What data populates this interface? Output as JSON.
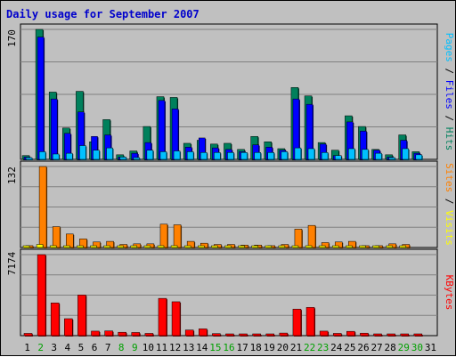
{
  "title": "Daily usage for September 2007",
  "colors": {
    "background": "#c0c0c0",
    "plot_background": "#c0c0c0",
    "grid": "#808080",
    "title": "#0000cc",
    "hits": "#00805c",
    "files": "#0000ff",
    "pages": "#00c0ff",
    "visits": "#ffff00",
    "sites": "#ff8000",
    "kbytes": "#ff0000",
    "weekend": "#00a000",
    "weekday": "#000000"
  },
  "side_labels": {
    "top": [
      {
        "text": "Pages",
        "color": "#00c0ff"
      },
      {
        "text": " / ",
        "color": "#000000"
      },
      {
        "text": "Files",
        "color": "#0000ff"
      },
      {
        "text": " / ",
        "color": "#000000"
      },
      {
        "text": "Hits",
        "color": "#00805c"
      }
    ],
    "middle": [
      {
        "text": "Sites",
        "color": "#ff8000"
      },
      {
        "text": " / ",
        "color": "#000000"
      },
      {
        "text": "Visits",
        "color": "#ffff00"
      }
    ],
    "bottom": [
      {
        "text": "KBytes",
        "color": "#ff0000"
      }
    ]
  },
  "chart_data": {
    "type": "bar",
    "title": "Daily usage for September 2007",
    "days": [
      "1",
      "2",
      "3",
      "4",
      "5",
      "6",
      "7",
      "8",
      "9",
      "10",
      "11",
      "12",
      "13",
      "14",
      "15",
      "16",
      "17",
      "18",
      "19",
      "20",
      "21",
      "22",
      "23",
      "24",
      "25",
      "26",
      "27",
      "28",
      "29",
      "30",
      "31"
    ],
    "weekend_days": [
      "2",
      "8",
      "9",
      "15",
      "16",
      "22",
      "23",
      "29",
      "30"
    ],
    "panels": [
      {
        "id": "hits-files-pages",
        "ymax_label": "170",
        "ylim": [
          0,
          170
        ],
        "series": [
          {
            "name": "Hits",
            "color": "#00805c",
            "values": [
              5,
              170,
              88,
              41,
              89,
              23,
              52,
              6,
              11,
              43,
              82,
              81,
              21,
              25,
              20,
              21,
              13,
              30,
              23,
              14,
              94,
              83,
              22,
              12,
              57,
              43,
              13,
              6,
              32,
              10,
              0
            ]
          },
          {
            "name": "Files",
            "color": "#0000ff",
            "values": [
              3,
              160,
              79,
              34,
              62,
              30,
              32,
              3,
              8,
              22,
              77,
              66,
              16,
              28,
              15,
              13,
              10,
              19,
              16,
              12,
              79,
              72,
              20,
              5,
              49,
              37,
              12,
              3,
              25,
              8,
              0
            ]
          },
          {
            "name": "Pages",
            "color": "#00c0ff",
            "values": [
              1,
              10,
              7,
              8,
              18,
              12,
              15,
              3,
              2,
              12,
              10,
              11,
              10,
              9,
              9,
              9,
              9,
              9,
              9,
              10,
              15,
              14,
              9,
              5,
              14,
              13,
              8,
              2,
              14,
              6,
              0
            ]
          }
        ]
      },
      {
        "id": "sites-visits",
        "ymax_label": "132",
        "ylim": [
          0,
          132
        ],
        "series": [
          {
            "name": "Sites",
            "color": "#ff8000",
            "values": [
              3,
              132,
              34,
              22,
              14,
              9,
              10,
              5,
              6,
              6,
              38,
              37,
              10,
              7,
              5,
              5,
              4,
              4,
              3,
              5,
              30,
              36,
              8,
              9,
              10,
              3,
              3,
              6,
              5,
              0,
              0
            ]
          },
          {
            "name": "Visits",
            "color": "#ffff00",
            "values": [
              1,
              5,
              3,
              2,
              2,
              2,
              2,
              1,
              1,
              1,
              3,
              3,
              2,
              1,
              1,
              1,
              1,
              1,
              1,
              1,
              2,
              3,
              1,
              1,
              2,
              1,
              1,
              1,
              1,
              0,
              0
            ]
          }
        ]
      },
      {
        "id": "kbytes",
        "ymax_label": "7174",
        "ylim": [
          0,
          7174
        ],
        "series": [
          {
            "name": "KBytes",
            "color": "#ff0000",
            "values": [
              200,
              7174,
              2900,
              1500,
              3600,
              400,
              420,
              300,
              280,
              200,
              3300,
              3000,
              500,
              600,
              180,
              150,
              150,
              140,
              140,
              230,
              2350,
              2500,
              400,
              200,
              380,
              220,
              150,
              90,
              130,
              110,
              0
            ]
          }
        ]
      }
    ]
  }
}
